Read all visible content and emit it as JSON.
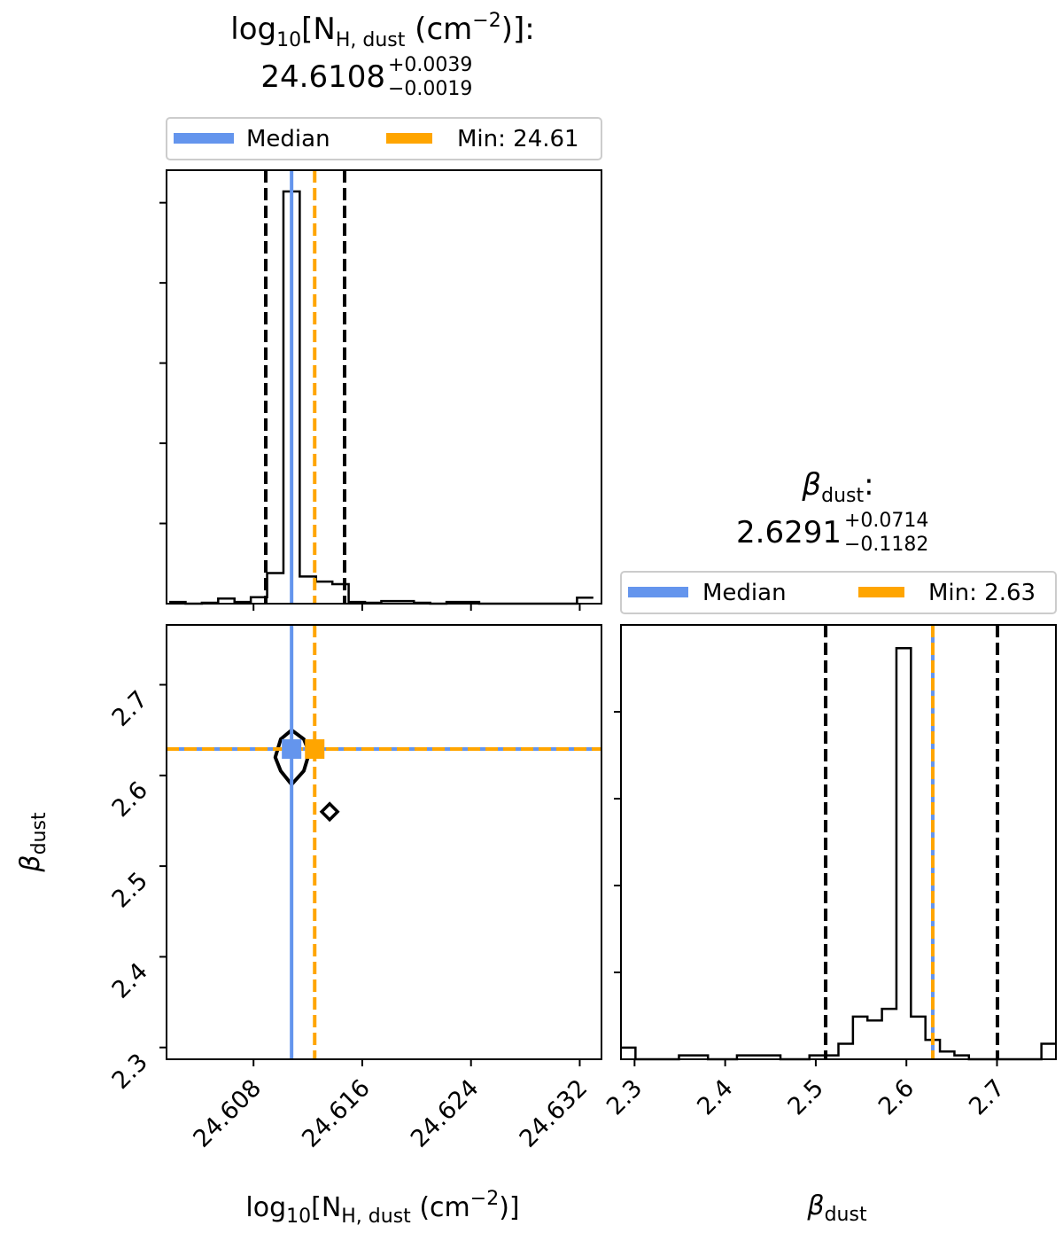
{
  "colors": {
    "median": "#6495ed",
    "min": "#ffa500",
    "quantile": "#000000",
    "hist": "#000000",
    "legend_border": "#cccccc"
  },
  "titles": {
    "nh": {
      "label_prefix": "log",
      "label_sub10": "10",
      "label_mid": "[N",
      "label_subH": "H, dust",
      "label_unit": " (cm",
      "label_sup": "−2",
      "label_end": ")]:",
      "value": "24.6108",
      "plus": "+0.0039",
      "minus": "−0.0019"
    },
    "beta": {
      "label_symbol": "β",
      "label_sub": "dust",
      "label_end": ":",
      "value": "2.6291",
      "plus": "+0.0714",
      "minus": "−0.1182"
    }
  },
  "legends": {
    "nh": {
      "median_label": "Median",
      "min_label": "Min: 24.61"
    },
    "beta": {
      "median_label": "Median",
      "min_label": "Min: 2.63"
    }
  },
  "axis_labels": {
    "x_nh": {
      "prefix": "log",
      "sub10": "10",
      "mid": "[N",
      "subH": "H, dust",
      "unit": " (cm",
      "sup": "−2",
      "end": ")]"
    },
    "x_beta": {
      "symbol": "β",
      "sub": "dust"
    },
    "y_beta": {
      "symbol": "β",
      "sub": "dust"
    }
  },
  "chart_data": [
    {
      "type": "histogram",
      "panel": "nh-marginal",
      "x": [
        24.6024,
        24.6036,
        24.6048,
        24.606,
        24.6072,
        24.6084,
        24.6096,
        24.6108,
        24.612,
        24.6132,
        24.6144,
        24.6156,
        24.6168,
        24.618,
        24.6192,
        24.6204,
        24.6216,
        24.6228,
        24.624,
        24.6252,
        24.6264,
        24.6276,
        24.6288,
        24.63,
        24.6312,
        24.6324
      ],
      "values": [
        0.4,
        0,
        0.2,
        1.2,
        0.4,
        1.5,
        7.2,
        97,
        6.4,
        5.2,
        4.6,
        0.4,
        0.2,
        0.6,
        0.6,
        0.2,
        0,
        0.4,
        0.4,
        0,
        0,
        0,
        0,
        0,
        0,
        1.4
      ],
      "xlim": [
        24.6016,
        24.6336
      ],
      "ylim": [
        0,
        102
      ],
      "xticks": [
        "24.608",
        "24.616",
        "24.624",
        "24.632"
      ],
      "median": 24.6108,
      "min": 24.6125,
      "quantiles": [
        24.6089,
        24.6147
      ]
    },
    {
      "type": "scatter",
      "panel": "nh-vs-beta",
      "x": [
        24.6108,
        24.6125
      ],
      "y": [
        2.6291,
        2.6291
      ],
      "contour_x": [
        24.6108,
        24.6117,
        24.6121,
        24.6117,
        24.6108,
        24.61,
        24.6096,
        24.61
      ],
      "contour_y": [
        2.65,
        2.64,
        2.625,
        2.605,
        2.59,
        2.605,
        2.62,
        2.64
      ],
      "diamond": [
        24.6136,
        2.56
      ],
      "xlim": [
        24.6016,
        24.6336
      ],
      "ylim": [
        2.287,
        2.766
      ],
      "xticks": [
        "24.608",
        "24.616",
        "24.624",
        "24.632"
      ],
      "yticks": [
        "2.3",
        "2.4",
        "2.5",
        "2.6",
        "2.7"
      ],
      "median_x": 24.6108,
      "min_x": 24.6125,
      "median_y": 2.6291,
      "min_y": 2.6291
    },
    {
      "type": "histogram",
      "panel": "beta-marginal",
      "x": [
        2.293,
        2.309,
        2.325,
        2.341,
        2.357,
        2.373,
        2.389,
        2.405,
        2.421,
        2.437,
        2.453,
        2.469,
        2.485,
        2.501,
        2.517,
        2.533,
        2.549,
        2.565,
        2.581,
        2.597,
        2.613,
        2.629,
        2.645,
        2.661,
        2.677,
        2.693,
        2.709,
        2.725,
        2.741,
        2.757
      ],
      "values": [
        1.5,
        0,
        0,
        0,
        0.5,
        0.5,
        0,
        0,
        0.5,
        0.5,
        0.5,
        0,
        0,
        0.5,
        0.5,
        2.0,
        5.5,
        5.0,
        6.5,
        53,
        5.5,
        2.5,
        1.0,
        0.5,
        0,
        0,
        0,
        0,
        0,
        2.0
      ],
      "bin_width": 0.016,
      "xlim": [
        2.285,
        2.765
      ],
      "ylim": [
        0,
        56
      ],
      "xticks": [
        "2.3",
        "2.4",
        "2.5",
        "2.6",
        "2.7"
      ],
      "median": 2.6291,
      "min": 2.6291,
      "quantiles": [
        2.5109,
        2.7005
      ]
    }
  ]
}
